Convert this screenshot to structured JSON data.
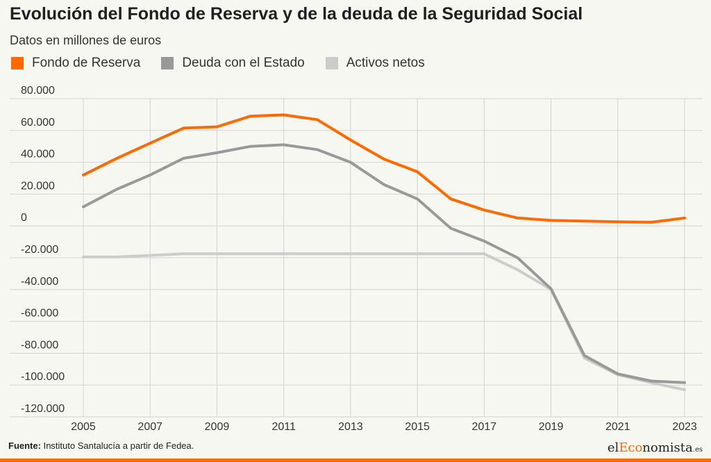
{
  "title": "Evolución del Fondo de Reserva y de la deuda de la Seguridad Social",
  "subtitle": "Datos en millones de euros",
  "source": {
    "label": "Fuente:",
    "text": "Instituto Santalucía a partir de Fedea."
  },
  "brand": {
    "part1": "el",
    "part2": "Eco",
    "part3": "nomista",
    "suffix": ".es",
    "accent_color": "#ff6a00"
  },
  "chart_data": {
    "type": "line",
    "title": "Evolución del Fondo de Reserva y de la deuda de la Seguridad Social",
    "subtitle": "Datos en millones de euros",
    "xlabel": "",
    "ylabel": "",
    "ylim": [
      -120000,
      80000
    ],
    "xlim": [
      2005,
      2023
    ],
    "yticks": [
      80000,
      60000,
      40000,
      20000,
      0,
      -20000,
      -40000,
      -60000,
      -80000,
      -100000,
      -120000
    ],
    "ytick_labels": [
      "80.000",
      "60.000",
      "40.000",
      "20.000",
      "0",
      "-20.000",
      "-40.000",
      "-60.000",
      "-80.000",
      "-100.000",
      "-120.000"
    ],
    "xticks": [
      2005,
      2007,
      2009,
      2011,
      2013,
      2015,
      2017,
      2019,
      2021,
      2023
    ],
    "xtick_labels": [
      "2005",
      "2007",
      "2009",
      "2011",
      "2013",
      "2015",
      "2017",
      "2019",
      "2021",
      "2023"
    ],
    "grid": true,
    "legend_position": "top-left",
    "x": [
      2005,
      2006,
      2007,
      2008,
      2009,
      2010,
      2011,
      2012,
      2013,
      2014,
      2015,
      2016,
      2017,
      2018,
      2019,
      2020,
      2021,
      2022,
      2023
    ],
    "series": [
      {
        "name": "Fondo de Reserva",
        "color": "#ff6a00",
        "values": [
          32000,
          42500,
          52000,
          61500,
          62300,
          69000,
          69800,
          66800,
          54000,
          42000,
          34000,
          17000,
          10000,
          5000,
          3500,
          3000,
          2600,
          2300,
          5000
        ]
      },
      {
        "name": "Deuda con el Estado",
        "color": "#999999",
        "values": [
          12000,
          23000,
          32000,
          42500,
          46000,
          50000,
          51000,
          48000,
          40000,
          26000,
          17000,
          -1500,
          -9500,
          -20000,
          -39500,
          -81500,
          -93000,
          -97500,
          -98500
        ]
      },
      {
        "name": "Activos netos",
        "color": "#cccccc",
        "values": [
          -19500,
          -19500,
          -18500,
          -17500,
          -17500,
          -17500,
          -17500,
          -17500,
          -17500,
          -17500,
          -17500,
          -17500,
          -17500,
          -27500,
          -40000,
          -83000,
          -93500,
          -98500,
          -103000
        ]
      }
    ]
  }
}
